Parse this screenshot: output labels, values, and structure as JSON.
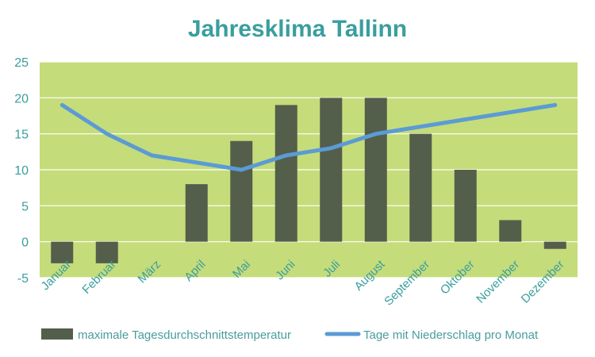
{
  "chart_data": {
    "type": "bar",
    "title": "Jahresklima Tallinn",
    "categories": [
      "Januar",
      "Februar",
      "März",
      "April",
      "Mai",
      "Juni",
      "Juli",
      "August",
      "September",
      "Oktober",
      "November",
      "Dezember"
    ],
    "series": [
      {
        "name": "maximale Tagesdurchschnittstemperatur",
        "type": "bar",
        "values": [
          -3,
          -3,
          0,
          8,
          14,
          19,
          20,
          20,
          15,
          10,
          3,
          -1
        ]
      },
      {
        "name": "Tage mit Niederschlag pro Monat",
        "type": "line",
        "values": [
          19,
          15,
          12,
          11,
          10,
          12,
          13,
          15,
          16,
          17,
          18,
          19
        ]
      }
    ],
    "y_ticks": [
      "25",
      "20",
      "15",
      "10",
      "5",
      "0",
      "-5"
    ],
    "ylim": [
      -5,
      25
    ],
    "grid": true,
    "legend_position": "bottom",
    "colors": {
      "plot_background": "#c5dc7a",
      "bars": "#535f4b",
      "line": "#5b9bd5",
      "text": "#3a9e9e",
      "grid": "#ffffff"
    }
  }
}
